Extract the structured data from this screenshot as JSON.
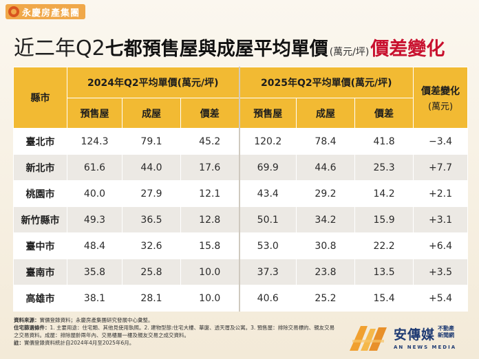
{
  "logo": {
    "text": "永慶房產集團"
  },
  "title": {
    "part1": "近二年Q2",
    "part2": "七都預售屋與成屋平均單價",
    "unit": "(萬元/坪)",
    "part3": "價差變化"
  },
  "table": {
    "city_header": "縣市",
    "group_2024": "2024年Q2平均單價(萬元/坪)",
    "group_2025": "2025年Q2平均單價(萬元/坪)",
    "change_header_line1": "價差變化",
    "change_header_line2": "(萬元)",
    "sub_presale": "預售屋",
    "sub_existing": "成屋",
    "sub_diff": "價差",
    "rows": [
      {
        "city": "臺北市",
        "p24": "124.3",
        "e24": "79.1",
        "d24": "45.2",
        "p25": "120.2",
        "e25": "78.4",
        "d25": "41.8",
        "chg": "−3.4"
      },
      {
        "city": "新北市",
        "p24": "61.6",
        "e24": "44.0",
        "d24": "17.6",
        "p25": "69.9",
        "e25": "44.6",
        "d25": "25.3",
        "chg": "+7.7"
      },
      {
        "city": "桃園市",
        "p24": "40.0",
        "e24": "27.9",
        "d24": "12.1",
        "p25": "43.4",
        "e25": "29.2",
        "d25": "14.2",
        "chg": "+2.1"
      },
      {
        "city": "新竹縣市",
        "p24": "49.3",
        "e24": "36.5",
        "d24": "12.8",
        "p25": "50.1",
        "e25": "34.2",
        "d25": "15.9",
        "chg": "+3.1"
      },
      {
        "city": "臺中市",
        "p24": "48.4",
        "e24": "32.6",
        "d24": "15.8",
        "p25": "53.0",
        "e25": "30.8",
        "d25": "22.2",
        "chg": "+6.4"
      },
      {
        "city": "臺南市",
        "p24": "35.8",
        "e24": "25.8",
        "d24": "10.0",
        "p25": "37.3",
        "e25": "23.8",
        "d25": "13.5",
        "chg": "+3.5"
      },
      {
        "city": "高雄市",
        "p24": "38.1",
        "e24": "28.1",
        "d24": "10.0",
        "p25": "40.6",
        "e25": "25.2",
        "d25": "15.4",
        "chg": "+5.4"
      }
    ]
  },
  "notes": {
    "source_label": "資料來源：",
    "source_text": "實價登錄資料；永慶房產集團研究發展中心彙整。",
    "cond_label": "住宅篩選條件：",
    "cond_text": "1. 主要用途：住宅類、其他見使用執照。2. 建物型態:住宅大樓、華廈、透天厝及公寓。3. 預售屋：排除交易標的、親友交易之交易資料。成屋：排除屋齡兩年內、交易樓層一樓及親友交易之成交資料。",
    "note_label": "註：",
    "note_text": "實價登錄資料統計自2024年4月至2025年6月。"
  },
  "news_logo": {
    "name": "安傳媒",
    "side1": "不動產",
    "side2": "新聞網",
    "en": "AN NEWS MEDIA"
  },
  "colors": {
    "header_gold": "#f2ba33",
    "title_red": "#c8102e",
    "logo_orange": "#f0a84a",
    "row_alt": "#ece9e4",
    "news_blue": "#1f3b73"
  }
}
